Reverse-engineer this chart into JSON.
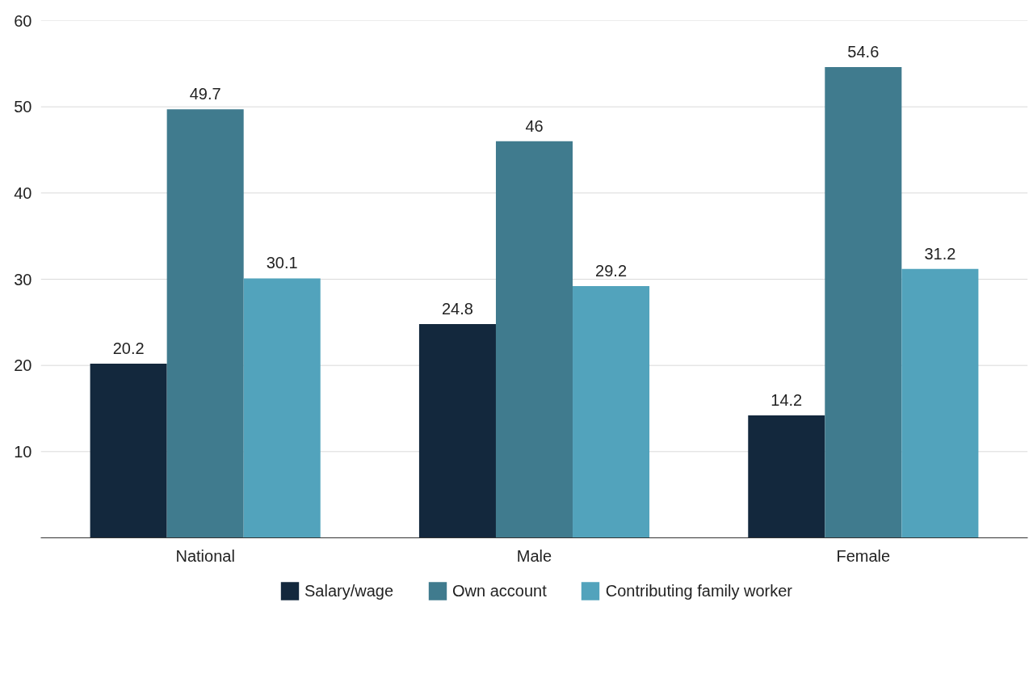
{
  "chart_data": {
    "type": "bar",
    "categories": [
      "National",
      "Male",
      "Female"
    ],
    "series": [
      {
        "name": "Salary/wage",
        "color": "#13283d",
        "values": [
          20.2,
          24.8,
          14.2
        ]
      },
      {
        "name": "Own account",
        "color": "#407b8e",
        "values": [
          49.7,
          46,
          54.6
        ]
      },
      {
        "name": "Contributing family worker",
        "color": "#52a3bc",
        "values": [
          30.1,
          29.2,
          31.2
        ]
      }
    ],
    "ylim": [
      0,
      60
    ],
    "yticks": [
      {
        "value": 0,
        "label": null
      },
      10,
      20,
      30,
      40,
      50,
      60
    ],
    "grid": "y",
    "legend": "bottom",
    "data_labels": true
  }
}
